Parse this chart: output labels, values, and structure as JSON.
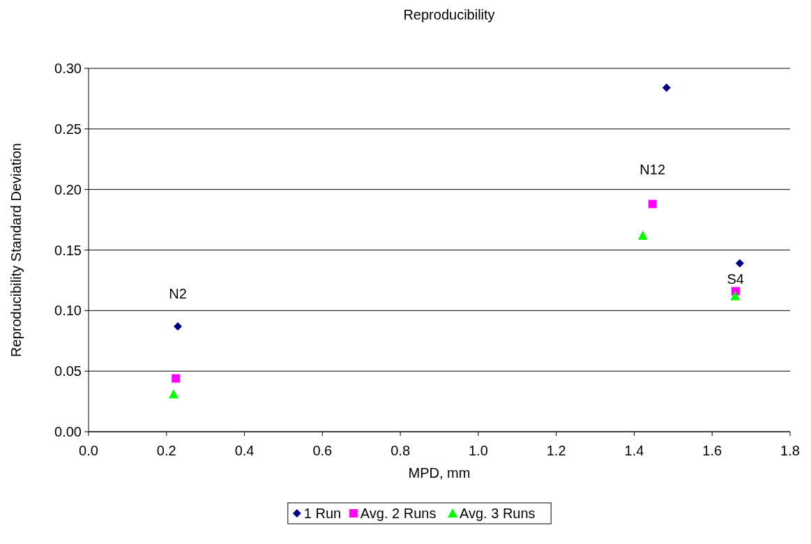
{
  "chart_data": {
    "type": "scatter",
    "title": "Reproducibility",
    "xlabel": "MPD, mm",
    "ylabel": "Reproducibility Standard Deviation",
    "xlim": [
      0,
      1.8
    ],
    "xticks": [
      {
        "value": 0,
        "label": "0.0"
      },
      {
        "value": 0.2,
        "label": "0.2"
      },
      {
        "value": 0.4,
        "label": "0.4"
      },
      {
        "value": 0.6,
        "label": "0.6"
      },
      {
        "value": 0.8,
        "label": "0.8"
      },
      {
        "value": 1,
        "label": "1.0"
      },
      {
        "value": 1.2,
        "label": "1.2"
      },
      {
        "value": 1.4,
        "label": "1.4"
      },
      {
        "value": 1.6,
        "label": "1.6"
      },
      {
        "value": 1.8,
        "label": "1.8"
      }
    ],
    "ylim": [
      0,
      0.3
    ],
    "yticks": [
      {
        "value": 0,
        "label": "0.00"
      },
      {
        "value": 0.05,
        "label": "0.05"
      },
      {
        "value": 0.1,
        "label": "0.10"
      },
      {
        "value": 0.15,
        "label": "0.15"
      },
      {
        "value": 0.2,
        "label": "0.20"
      },
      {
        "value": 0.25,
        "label": "0.25"
      },
      {
        "value": 0.3,
        "label": "0.30"
      }
    ],
    "grid": "y",
    "legend": "bottom",
    "series": [
      {
        "name": "1 Run",
        "color": "#000080",
        "marker": "diamond",
        "x": [
          0.229,
          1.483,
          1.671
        ],
        "values": [
          0.087,
          0.284,
          0.139
        ]
      },
      {
        "name": "Avg. 2 Runs",
        "color": "#ff00ff",
        "marker": "square",
        "x": [
          0.224,
          1.447,
          1.66
        ],
        "values": [
          0.044,
          0.188,
          0.116
        ]
      },
      {
        "name": "Avg. 3 Runs",
        "color": "#00ff00",
        "marker": "triangle",
        "x": [
          0.218,
          1.422,
          1.659
        ],
        "values": [
          0.031,
          0.162,
          0.112
        ]
      }
    ],
    "annotations": [
      {
        "text": "N2",
        "x": 0.229,
        "y": 0.087
      },
      {
        "text": "N12",
        "x": 1.447,
        "y": 0.188
      },
      {
        "text": "S4",
        "x": 1.66,
        "y": 0.116
      }
    ]
  }
}
